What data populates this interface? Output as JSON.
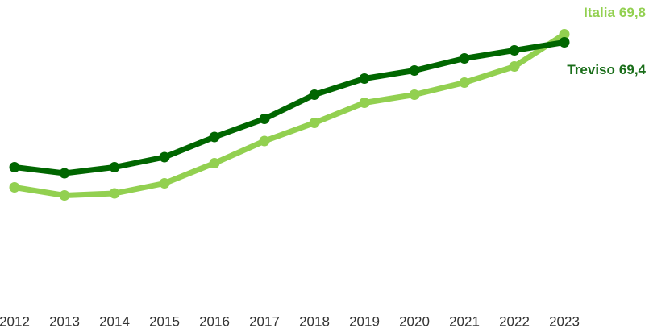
{
  "chart_data": {
    "type": "line",
    "categories": [
      "2012",
      "2013",
      "2014",
      "2015",
      "2016",
      "2017",
      "2018",
      "2019",
      "2020",
      "2021",
      "2022",
      "2023"
    ],
    "series": [
      {
        "name": "Italia",
        "color": "#92d050",
        "values": [
          62.2,
          61.8,
          61.9,
          62.4,
          63.4,
          64.5,
          65.4,
          66.4,
          66.8,
          67.4,
          68.2,
          69.8
        ],
        "value_labels": [
          null,
          null,
          null,
          null,
          null,
          null,
          null,
          null,
          null,
          null,
          null,
          "69,8"
        ]
      },
      {
        "name": "Treviso",
        "color": "#006600",
        "values": [
          63.2,
          62.9,
          63.2,
          63.7,
          64.7,
          65.6,
          66.8,
          67.6,
          68.0,
          68.6,
          69.0,
          69.4
        ],
        "value_labels": [
          null,
          null,
          null,
          null,
          null,
          null,
          null,
          null,
          null,
          null,
          null,
          "69,4"
        ]
      }
    ],
    "ylim": [
      56.5,
      71.5
    ]
  }
}
